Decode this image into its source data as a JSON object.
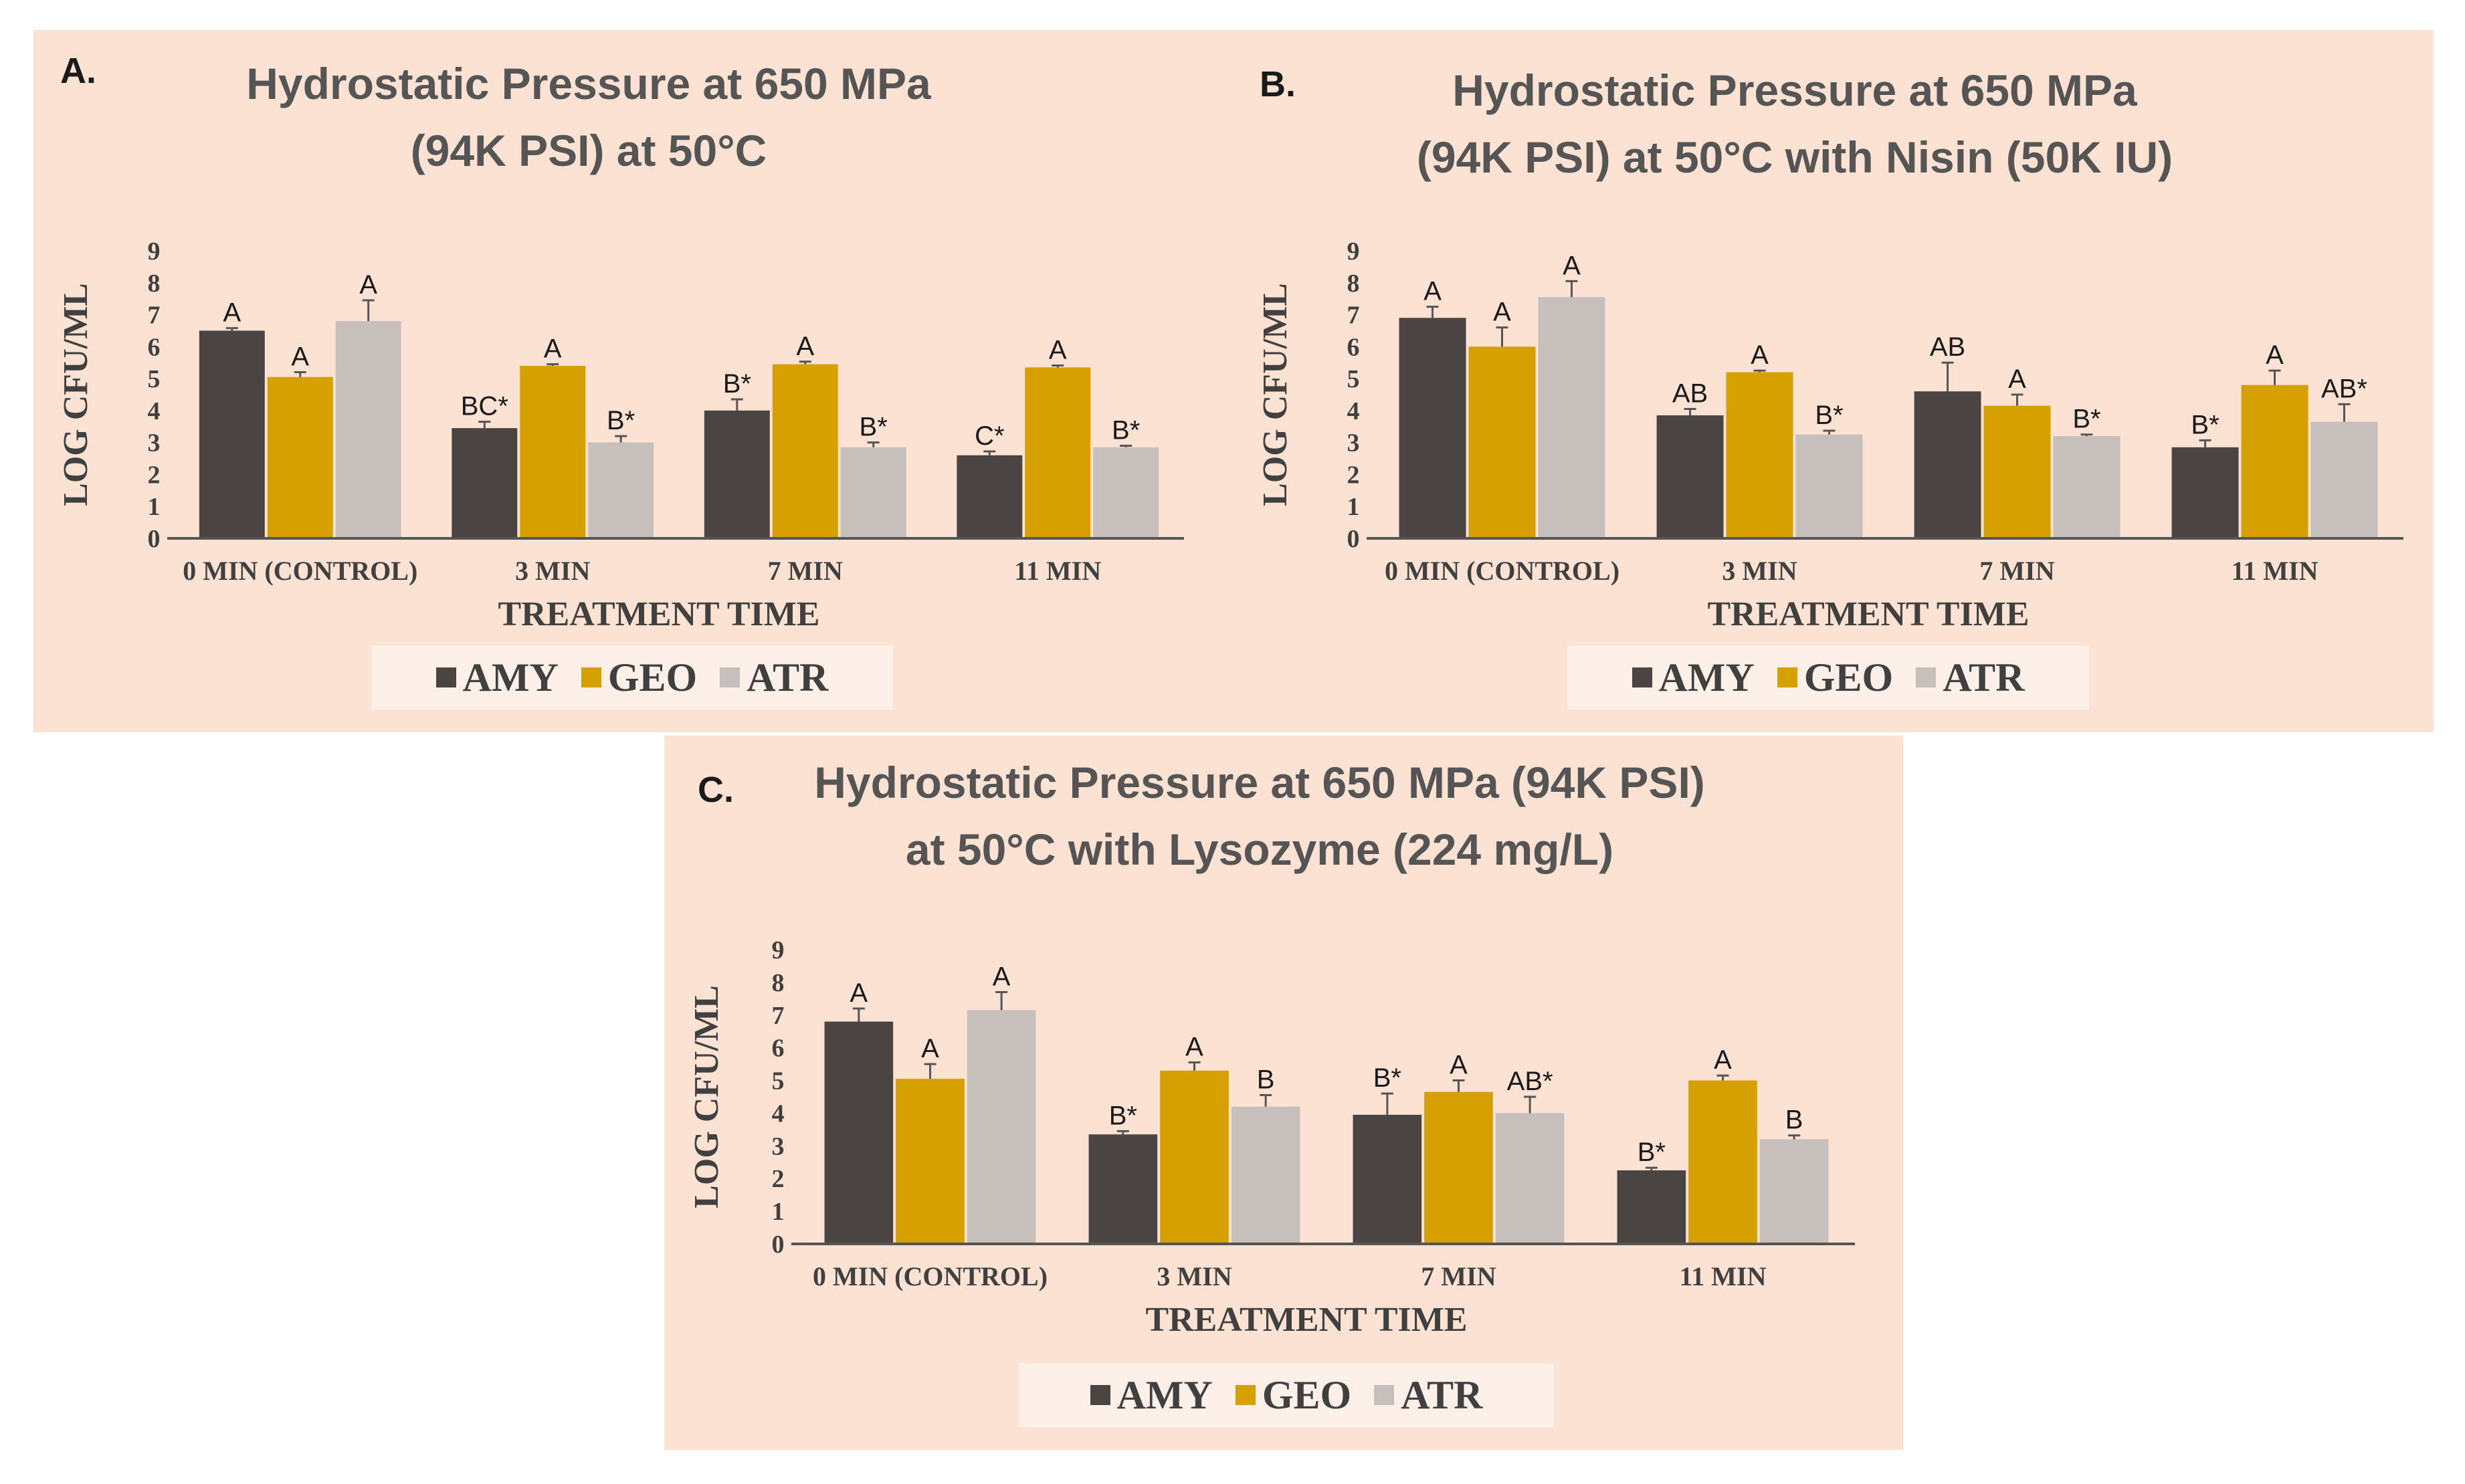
{
  "colors": {
    "AMY": "#4a4442",
    "GEO": "#d6a000",
    "ATR": "#c6bfbc",
    "panel_bg": "#fbe2d3",
    "legend_bg": "#fdf0e8"
  },
  "legend": [
    {
      "key": "AMY",
      "label": "AMY"
    },
    {
      "key": "GEO",
      "label": "GEO"
    },
    {
      "key": "ATR",
      "label": "ATR"
    }
  ],
  "chart_data": [
    {
      "type": "bar",
      "panel_letter": "A.",
      "title_lines": [
        "Hydrostatic Pressure at 650 MPa",
        "(94K PSI) at 50°C"
      ],
      "xlabel": "TREATMENT TIME",
      "ylabel": "LOG CFU/ML",
      "ylim": [
        0,
        9
      ],
      "yticks": [
        "0",
        "1",
        "2",
        "3",
        "4",
        "5",
        "6",
        "7",
        "8",
        "9"
      ],
      "categories": [
        "0 MIN (CONTROL)",
        "3 MIN",
        "7 MIN",
        "11 MIN"
      ],
      "series": [
        {
          "name": "AMY",
          "values": [
            6.5,
            3.45,
            4.0,
            2.6
          ],
          "errors": [
            0.08,
            0.2,
            0.35,
            0.12
          ],
          "labels": [
            "A",
            "BC*",
            "B*",
            "C*"
          ]
        },
        {
          "name": "GEO",
          "values": [
            5.05,
            5.4,
            5.45,
            5.35
          ],
          "errors": [
            0.15,
            0.05,
            0.08,
            0.06
          ],
          "labels": [
            "A",
            "A",
            "A",
            "A"
          ]
        },
        {
          "name": "ATR",
          "values": [
            6.8,
            3.0,
            2.85,
            2.85
          ],
          "errors": [
            0.65,
            0.2,
            0.15,
            0.05
          ],
          "labels": [
            "A",
            "B*",
            "B*",
            "B*"
          ]
        }
      ]
    },
    {
      "type": "bar",
      "panel_letter": "B.",
      "title_lines": [
        "Hydrostatic Pressure at 650 MPa",
        "(94K PSI) at 50°C with Nisin (50K IU)"
      ],
      "xlabel": "TREATMENT TIME",
      "ylabel": "LOG CFU/ML",
      "ylim": [
        0,
        9
      ],
      "yticks": [
        "0",
        "1",
        "2",
        "3",
        "4",
        "5",
        "6",
        "7",
        "8",
        "9"
      ],
      "categories": [
        "0 MIN (CONTROL)",
        "3 MIN",
        "7 MIN",
        "11 MIN"
      ],
      "series": [
        {
          "name": "AMY",
          "values": [
            6.9,
            3.85,
            4.6,
            2.85
          ],
          "errors": [
            0.35,
            0.2,
            0.9,
            0.22
          ],
          "labels": [
            "A",
            "AB",
            "AB",
            "B*"
          ]
        },
        {
          "name": "GEO",
          "values": [
            6.0,
            5.2,
            4.15,
            4.8
          ],
          "errors": [
            0.6,
            0.05,
            0.35,
            0.45
          ],
          "labels": [
            "A",
            "A",
            "A",
            "A"
          ]
        },
        {
          "name": "ATR",
          "values": [
            7.55,
            3.25,
            3.2,
            3.65
          ],
          "errors": [
            0.5,
            0.12,
            0.05,
            0.55
          ],
          "labels": [
            "A",
            "B*",
            "B*",
            "AB*"
          ]
        }
      ]
    },
    {
      "type": "bar",
      "panel_letter": "C.",
      "title_lines": [
        "Hydrostatic Pressure at 650 MPa (94K PSI)",
        "at 50°C with Lysozyme (224 mg/L)"
      ],
      "xlabel": "TREATMENT TIME",
      "ylabel": "LOG CFU/ML",
      "ylim": [
        0,
        9
      ],
      "yticks": [
        "0",
        "1",
        "2",
        "3",
        "4",
        "5",
        "6",
        "7",
        "8",
        "9"
      ],
      "categories": [
        "0 MIN (CONTROL)",
        "3 MIN",
        "7 MIN",
        "11 MIN"
      ],
      "series": [
        {
          "name": "AMY",
          "values": [
            6.8,
            3.35,
            3.95,
            2.25
          ],
          "errors": [
            0.4,
            0.1,
            0.65,
            0.08
          ],
          "labels": [
            "A",
            "B*",
            "B*",
            "B*"
          ]
        },
        {
          "name": "GEO",
          "values": [
            5.05,
            5.3,
            4.65,
            5.0
          ],
          "errors": [
            0.45,
            0.25,
            0.35,
            0.15
          ],
          "labels": [
            "A",
            "A",
            "A",
            "A"
          ]
        },
        {
          "name": "ATR",
          "values": [
            7.15,
            4.2,
            4.0,
            3.2
          ],
          "errors": [
            0.55,
            0.35,
            0.5,
            0.12
          ],
          "labels": [
            "A",
            "B",
            "AB*",
            "B"
          ]
        }
      ]
    }
  ]
}
